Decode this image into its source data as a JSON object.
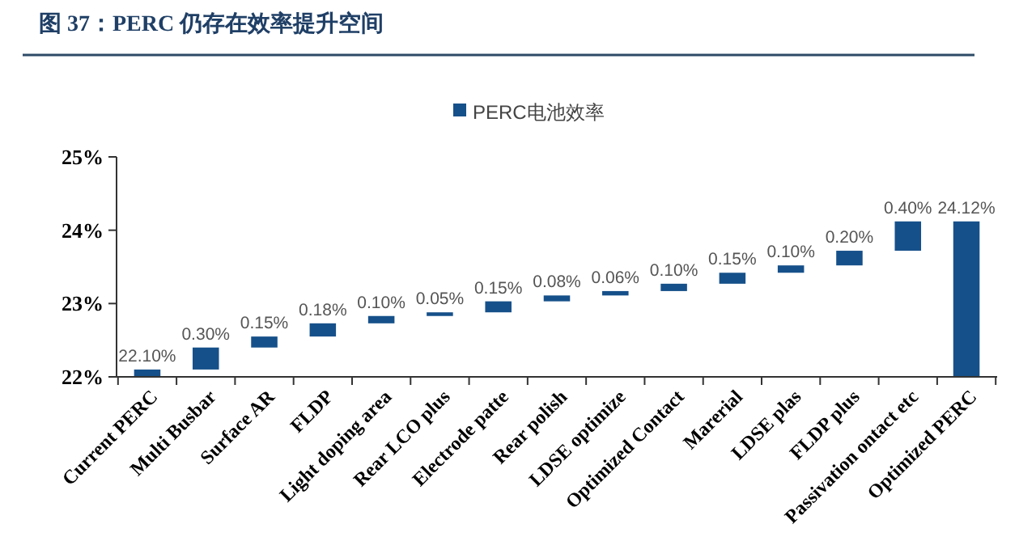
{
  "chart_data": {
    "type": "bar",
    "title": "图 37：PERC 仍存在效率提升空间",
    "categories": [
      "Current PERC",
      "Multi Busbar",
      "Surface AR",
      "FLDP",
      "Light doping area",
      "Rear LCO plus",
      "Electrode patte",
      "Rear polish",
      "LDSE optimize",
      "Optimized Contact",
      "Marerial",
      "LDSE plas",
      "FLDP plus",
      "Passivation ontact etc",
      "Optimized PERC"
    ],
    "series": [
      {
        "name": "PERC电池效率",
        "color": "#16508a",
        "values": [
          0.1,
          0.3,
          0.15,
          0.18,
          0.1,
          0.05,
          0.15,
          0.08,
          0.06,
          0.1,
          0.15,
          0.1,
          0.2,
          0.4,
          2.12
        ],
        "base": [
          22,
          22.1,
          22.4,
          22.55,
          22.73,
          22.83,
          22.88,
          23.03,
          23.11,
          23.17,
          23.27,
          23.42,
          23.52,
          23.72,
          22
        ],
        "value_labels": [
          "22.10%",
          "0.30%",
          "0.15%",
          "0.18%",
          "0.10%",
          "0.05%",
          "0.15%",
          "0.08%",
          "0.06%",
          "0.10%",
          "0.15%",
          "0.10%",
          "0.20%",
          "0.40%",
          "24.12%"
        ]
      }
    ],
    "ylim": [
      22,
      25
    ],
    "yticks": [
      {
        "value": 22,
        "label": "22%"
      },
      {
        "value": 23,
        "label": "23%"
      },
      {
        "value": 24,
        "label": "24%"
      },
      {
        "value": 25,
        "label": "25%"
      }
    ],
    "grid": false,
    "legend": "top"
  }
}
